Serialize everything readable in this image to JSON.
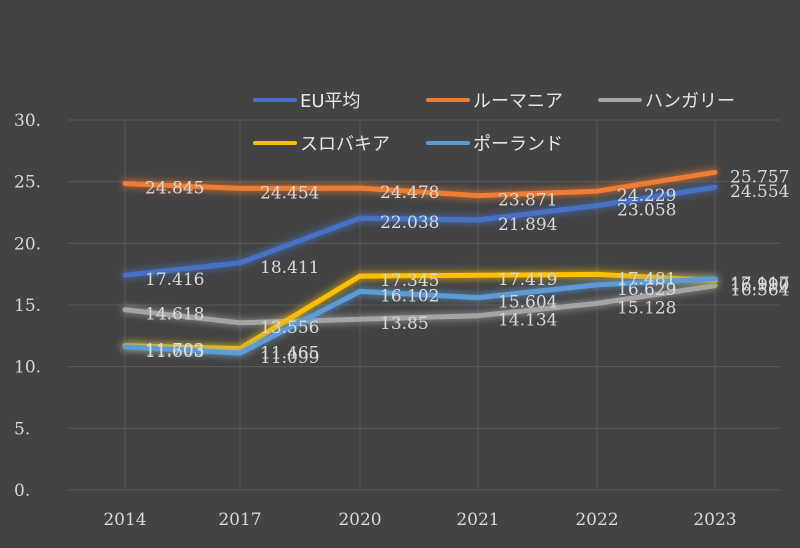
{
  "chart_data": {
    "type": "line",
    "categories": [
      "2014",
      "2017",
      "2020",
      "2021",
      "2022",
      "2023"
    ],
    "yticks": [
      "0.",
      "5.",
      "10.",
      "15.",
      "20.",
      "25.",
      "30."
    ],
    "ylim": [
      0,
      30
    ],
    "grid": true,
    "legend_position": "top",
    "series": [
      {
        "name": "EU平均",
        "color": "#4472c4",
        "values": [
          17.416,
          18.411,
          22.038,
          21.894,
          23.058,
          24.554
        ],
        "labels": [
          "17.416",
          "18.411",
          "22.038",
          "21.894",
          "23.058",
          "24.554"
        ]
      },
      {
        "name": "ルーマニア",
        "color": "#ed7d31",
        "values": [
          24.845,
          24.454,
          24.478,
          23.871,
          24.229,
          25.757
        ],
        "labels": [
          "24.845",
          "24.454",
          "24.478",
          "23.871",
          "24.229",
          "25.757"
        ]
      },
      {
        "name": "ハンガリー",
        "color": "#a5a5a5",
        "values": [
          14.618,
          13.556,
          13.85,
          14.134,
          15.128,
          16.564
        ],
        "labels": [
          "14.618",
          "13.556",
          "13.85",
          "14.134",
          "15.128",
          "16.564"
        ]
      },
      {
        "name": "スロバキア",
        "color": "#ffc000",
        "values": [
          11.703,
          11.465,
          17.345,
          17.419,
          17.481,
          16.99
        ],
        "labels": [
          "11.703",
          "11.465",
          "17.345",
          "17.419",
          "17.481",
          "16.990"
        ]
      },
      {
        "name": "ポーランド",
        "color": "#5b9bd5",
        "values": [
          11.603,
          11.099,
          16.102,
          15.604,
          16.629,
          17.117
        ],
        "labels": [
          "11.603",
          "11.099",
          "16.102",
          "15.604",
          "16.629",
          "17.117"
        ]
      }
    ]
  }
}
